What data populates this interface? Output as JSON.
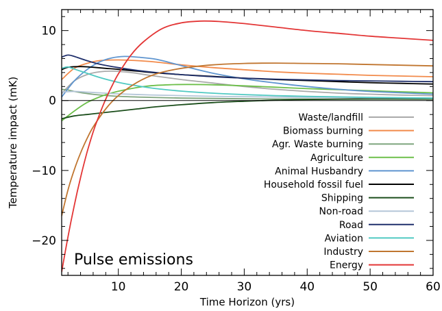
{
  "chart_data": {
    "type": "line",
    "title": "",
    "annotation": "Pulse emissions",
    "xlabel": "Time Horizon (yrs)",
    "ylabel": "Temperature impact (mK)",
    "xlim": [
      1,
      60
    ],
    "ylim": [
      -25,
      13
    ],
    "xticks": [
      10,
      20,
      30,
      40,
      50,
      60
    ],
    "yticks": [
      -20,
      -10,
      0,
      10
    ],
    "grid": false,
    "legend": "bottom-right",
    "zero_line": true,
    "series": [
      {
        "name": "Waste/landfill",
        "color": "#a9a9a9",
        "x": [
          1,
          3,
          5,
          7,
          9,
          12,
          15,
          20,
          25,
          30,
          35,
          40,
          45,
          50,
          55,
          60
        ],
        "y": [
          1.0,
          2.8,
          3.7,
          4.1,
          4.2,
          4.0,
          3.6,
          3.0,
          2.5,
          2.0,
          1.6,
          1.3,
          1.05,
          0.9,
          0.78,
          0.7
        ]
      },
      {
        "name": "Biomass burning",
        "color": "#f28a4a",
        "x": [
          1,
          3,
          5,
          7,
          10,
          13,
          16,
          20,
          25,
          30,
          35,
          40,
          45,
          50,
          55,
          60
        ],
        "y": [
          3.0,
          4.6,
          5.3,
          5.7,
          5.8,
          5.7,
          5.5,
          5.1,
          4.7,
          4.4,
          4.1,
          3.9,
          3.75,
          3.6,
          3.5,
          3.4
        ]
      },
      {
        "name": "Agr. Waste burning",
        "color": "#7fa57f",
        "x": [
          1,
          2,
          3,
          5,
          7,
          10,
          15,
          20,
          25,
          30,
          40,
          50,
          60
        ],
        "y": [
          1.6,
          1.5,
          1.3,
          1.0,
          0.8,
          0.6,
          0.45,
          0.35,
          0.3,
          0.25,
          0.2,
          0.18,
          0.15
        ]
      },
      {
        "name": "Agriculture",
        "color": "#6dbf4a",
        "x": [
          1,
          3,
          5,
          7,
          9,
          12,
          15,
          18,
          21,
          25,
          30,
          35,
          40,
          45,
          50,
          55,
          60
        ],
        "y": [
          -2.9,
          -1.5,
          -0.3,
          0.5,
          1.1,
          1.7,
          2.1,
          2.25,
          2.3,
          2.25,
          2.1,
          1.9,
          1.7,
          1.55,
          1.4,
          1.25,
          1.1
        ]
      },
      {
        "name": "Animal Husbandry",
        "color": "#5f95cf",
        "x": [
          1,
          3,
          5,
          7,
          9,
          11,
          13,
          16,
          20,
          25,
          30,
          35,
          40,
          45,
          50,
          55,
          60
        ],
        "y": [
          0.5,
          2.8,
          4.4,
          5.5,
          6.1,
          6.3,
          6.2,
          5.9,
          5.0,
          3.9,
          3.1,
          2.5,
          2.0,
          1.6,
          1.3,
          1.1,
          0.9
        ]
      },
      {
        "name": "Household fossil fuel",
        "color": "#000000",
        "x": [
          1,
          2,
          4,
          6,
          8,
          10,
          13,
          16,
          20,
          25,
          30,
          35,
          40,
          45,
          50,
          55,
          60
        ],
        "y": [
          4.4,
          4.75,
          4.85,
          4.75,
          4.6,
          4.45,
          4.2,
          3.95,
          3.7,
          3.45,
          3.2,
          3.0,
          2.85,
          2.7,
          2.55,
          2.45,
          2.35
        ]
      },
      {
        "name": "Shipping",
        "color": "#1a4d1a",
        "x": [
          1,
          3,
          5,
          7,
          10,
          13,
          16,
          20,
          25,
          30,
          35,
          40,
          50,
          60
        ],
        "y": [
          -2.6,
          -2.2,
          -2.0,
          -1.8,
          -1.5,
          -1.2,
          -0.9,
          -0.6,
          -0.3,
          -0.1,
          0.05,
          0.15,
          0.25,
          0.3
        ]
      },
      {
        "name": "Non-road",
        "color": "#b4c6d8",
        "x": [
          1,
          3,
          5,
          7,
          10,
          15,
          20,
          25,
          30,
          35,
          40,
          50,
          60
        ],
        "y": [
          1.2,
          1.3,
          1.2,
          1.1,
          0.95,
          0.8,
          0.7,
          0.6,
          0.55,
          0.5,
          0.45,
          0.4,
          0.35
        ]
      },
      {
        "name": "Road",
        "color": "#1f2f6b",
        "x": [
          1,
          2,
          3,
          5,
          7,
          10,
          13,
          16,
          20,
          25,
          30,
          35,
          40,
          45,
          50,
          55,
          60
        ],
        "y": [
          6.2,
          6.5,
          6.3,
          5.7,
          5.2,
          4.7,
          4.3,
          4.0,
          3.7,
          3.4,
          3.2,
          3.05,
          2.95,
          2.85,
          2.8,
          2.75,
          2.7
        ]
      },
      {
        "name": "Aviation",
        "color": "#4fc9c2",
        "x": [
          1,
          2,
          3,
          5,
          7,
          10,
          13,
          16,
          20,
          25,
          30,
          35,
          40,
          50,
          60
        ],
        "y": [
          4.6,
          4.8,
          4.5,
          3.9,
          3.3,
          2.6,
          2.1,
          1.7,
          1.35,
          1.05,
          0.85,
          0.7,
          0.6,
          0.45,
          0.35
        ]
      },
      {
        "name": "Industry",
        "color": "#c0752f",
        "x": [
          1,
          2,
          3,
          4,
          5,
          6,
          8,
          10,
          13,
          16,
          20,
          25,
          30,
          35,
          40,
          45,
          50,
          55,
          60
        ],
        "y": [
          -16.5,
          -12.8,
          -9.9,
          -7.5,
          -5.5,
          -3.8,
          -1.2,
          0.7,
          2.6,
          3.8,
          4.6,
          5.1,
          5.3,
          5.35,
          5.3,
          5.25,
          5.15,
          5.05,
          4.95
        ]
      },
      {
        "name": "Energy",
        "color": "#e33535",
        "x": [
          1,
          2,
          3,
          4,
          5,
          6,
          7,
          8,
          9,
          10,
          12,
          14,
          17,
          20,
          23,
          26,
          30,
          35,
          40,
          45,
          50,
          55,
          60
        ],
        "y": [
          -24.5,
          -19.5,
          -15.0,
          -11.0,
          -7.5,
          -4.5,
          -2.0,
          0.2,
          2.1,
          3.8,
          6.5,
          8.4,
          10.3,
          11.1,
          11.35,
          11.3,
          11.0,
          10.5,
          10.0,
          9.6,
          9.2,
          8.9,
          8.6
        ]
      }
    ]
  }
}
